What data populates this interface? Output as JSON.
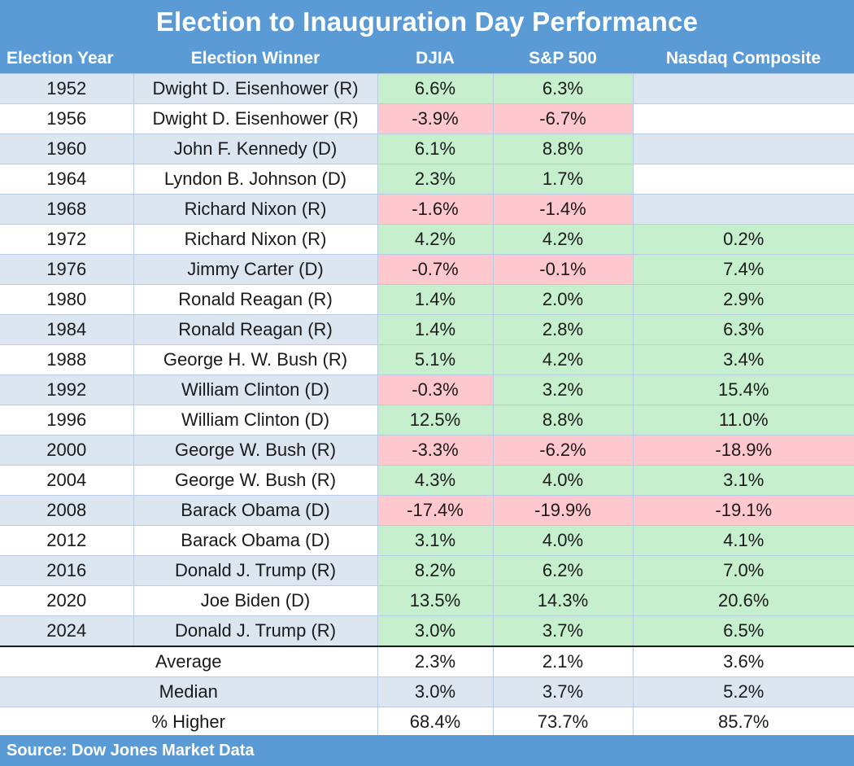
{
  "chart_data": {
    "type": "table",
    "title": "Election to Inauguration Day Performance",
    "columns": [
      "Election Year",
      "Election Winner",
      "DJIA",
      "S&P 500",
      "Nasdaq Composite"
    ],
    "rows": [
      {
        "year": "1952",
        "winner": "Dwight D. Eisenhower (R)",
        "djia": "6.6%",
        "sp500": "6.3%",
        "nasdaq": ""
      },
      {
        "year": "1956",
        "winner": "Dwight D. Eisenhower (R)",
        "djia": "-3.9%",
        "sp500": "-6.7%",
        "nasdaq": ""
      },
      {
        "year": "1960",
        "winner": "John F. Kennedy (D)",
        "djia": "6.1%",
        "sp500": "8.8%",
        "nasdaq": ""
      },
      {
        "year": "1964",
        "winner": "Lyndon B. Johnson (D)",
        "djia": "2.3%",
        "sp500": "1.7%",
        "nasdaq": ""
      },
      {
        "year": "1968",
        "winner": "Richard Nixon (R)",
        "djia": "-1.6%",
        "sp500": "-1.4%",
        "nasdaq": ""
      },
      {
        "year": "1972",
        "winner": "Richard Nixon (R)",
        "djia": "4.2%",
        "sp500": "4.2%",
        "nasdaq": "0.2%"
      },
      {
        "year": "1976",
        "winner": "Jimmy Carter (D)",
        "djia": "-0.7%",
        "sp500": "-0.1%",
        "nasdaq": "7.4%"
      },
      {
        "year": "1980",
        "winner": "Ronald Reagan (R)",
        "djia": "1.4%",
        "sp500": "2.0%",
        "nasdaq": "2.9%"
      },
      {
        "year": "1984",
        "winner": "Ronald Reagan (R)",
        "djia": "1.4%",
        "sp500": "2.8%",
        "nasdaq": "6.3%"
      },
      {
        "year": "1988",
        "winner": "George H. W. Bush (R)",
        "djia": "5.1%",
        "sp500": "4.2%",
        "nasdaq": "3.4%"
      },
      {
        "year": "1992",
        "winner": "William Clinton (D)",
        "djia": "-0.3%",
        "sp500": "3.2%",
        "nasdaq": "15.4%"
      },
      {
        "year": "1996",
        "winner": "William Clinton (D)",
        "djia": "12.5%",
        "sp500": "8.8%",
        "nasdaq": "11.0%"
      },
      {
        "year": "2000",
        "winner": "George W. Bush (R)",
        "djia": "-3.3%",
        "sp500": "-6.2%",
        "nasdaq": "-18.9%"
      },
      {
        "year": "2004",
        "winner": "George W. Bush (R)",
        "djia": "4.3%",
        "sp500": "4.0%",
        "nasdaq": "3.1%"
      },
      {
        "year": "2008",
        "winner": "Barack Obama (D)",
        "djia": "-17.4%",
        "sp500": "-19.9%",
        "nasdaq": "-19.1%"
      },
      {
        "year": "2012",
        "winner": "Barack Obama (D)",
        "djia": "3.1%",
        "sp500": "4.0%",
        "nasdaq": "4.1%"
      },
      {
        "year": "2016",
        "winner": "Donald J. Trump (R)",
        "djia": "8.2%",
        "sp500": "6.2%",
        "nasdaq": "7.0%"
      },
      {
        "year": "2020",
        "winner": "Joe Biden (D)",
        "djia": "13.5%",
        "sp500": "14.3%",
        "nasdaq": "20.6%"
      },
      {
        "year": "2024",
        "winner": "Donald J. Trump (R)",
        "djia": "3.0%",
        "sp500": "3.7%",
        "nasdaq": "6.5%"
      }
    ],
    "summary": [
      {
        "label": "Average",
        "djia": "2.3%",
        "sp500": "2.1%",
        "nasdaq": "3.6%"
      },
      {
        "label": "Median",
        "djia": "3.0%",
        "sp500": "3.7%",
        "nasdaq": "5.2%"
      },
      {
        "label": "% Higher",
        "djia": "68.4%",
        "sp500": "73.7%",
        "nasdaq": "85.7%"
      }
    ],
    "source": "Source: Dow Jones Market Data",
    "colors": {
      "header": "#5b9bd5",
      "positive_fill": "#c6efce",
      "positive_text": "#2e8b2e",
      "negative_fill": "#ffc7ce",
      "negative_text": "#c0262e",
      "band": "#dce6f1"
    }
  }
}
